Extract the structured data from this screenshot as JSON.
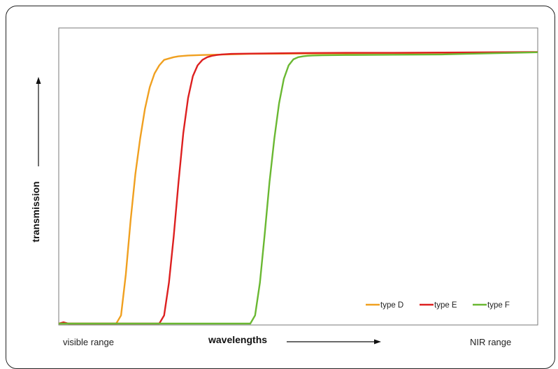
{
  "chart_data": {
    "type": "line",
    "title": "",
    "xlabel": "wavelengths",
    "ylabel": "transmission",
    "x_range_labels": {
      "left": "visible range",
      "right": "NIR range"
    },
    "xlim": [
      0,
      100
    ],
    "ylim": [
      0,
      100
    ],
    "grid": false,
    "legend_position": "bottom-right",
    "series": [
      {
        "name": "type D",
        "color": "#f0a020",
        "x": [
          0,
          7,
          12,
          13,
          14,
          15,
          16,
          17,
          18,
          19,
          20,
          21,
          22,
          23,
          24,
          25,
          27,
          30,
          35,
          40,
          50,
          60,
          70,
          80,
          90,
          100
        ],
        "y": [
          0,
          0,
          0,
          3,
          18,
          38,
          55,
          68,
          79,
          87,
          92,
          95,
          97,
          97.5,
          98,
          98.3,
          98.6,
          98.8,
          99,
          99.2,
          99.3,
          99.4,
          99.5,
          99.6,
          99.7,
          99.8
        ]
      },
      {
        "name": "type E",
        "color": "#dd2020",
        "x": [
          0,
          1,
          2,
          10,
          21,
          22,
          23,
          24,
          25,
          26,
          27,
          28,
          29,
          30,
          31,
          32,
          33,
          34,
          36,
          40,
          50,
          60,
          70,
          80,
          90,
          100
        ],
        "y": [
          0,
          0.5,
          0,
          0,
          0,
          3,
          15,
          32,
          52,
          70,
          83,
          91,
          95,
          97,
          98,
          98.5,
          98.8,
          99,
          99.2,
          99.3,
          99.5,
          99.6,
          99.6,
          99.7,
          99.8,
          99.9
        ]
      },
      {
        "name": "type F",
        "color": "#6ab832",
        "x": [
          0,
          2,
          10,
          20,
          30,
          40,
          41,
          42,
          43,
          44,
          45,
          46,
          47,
          48,
          49,
          50,
          51,
          52,
          53,
          55,
          60,
          70,
          80,
          85,
          90,
          100
        ],
        "y": [
          0,
          0,
          0,
          0,
          0,
          0,
          3,
          15,
          33,
          52,
          68,
          81,
          90,
          95,
          97.2,
          98,
          98.3,
          98.5,
          98.6,
          98.7,
          98.8,
          98.9,
          99,
          99.2,
          99.4,
          99.8
        ]
      }
    ]
  }
}
